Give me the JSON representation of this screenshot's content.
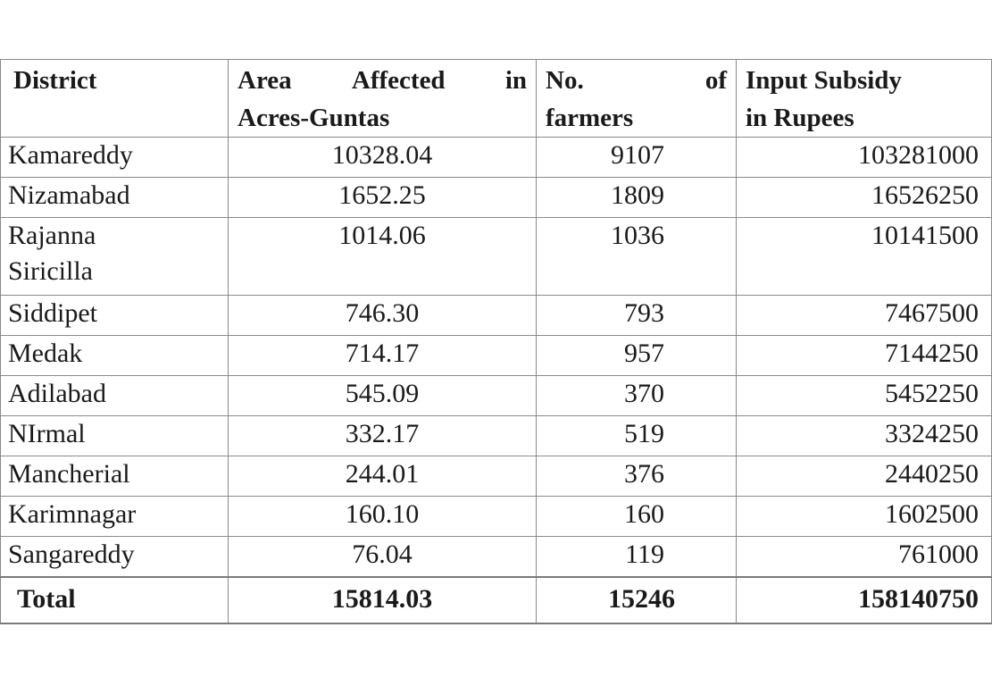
{
  "table": {
    "headers": {
      "district": "District",
      "area": [
        "Area Affected in",
        "Acres-Guntas"
      ],
      "farmers": [
        "No. of",
        "farmers"
      ],
      "subsidy": [
        "Input Subsidy",
        "in Rupees"
      ]
    },
    "rows": [
      {
        "district": "Kamareddy",
        "area": "10328.04",
        "farmers": "9107",
        "subsidy": "103281000"
      },
      {
        "district": "Nizamabad",
        "area": "1652.25",
        "farmers": "1809",
        "subsidy": "16526250"
      },
      {
        "district": "Rajanna Siricilla",
        "area": "1014.06",
        "farmers": "1036",
        "subsidy": "10141500"
      },
      {
        "district": "Siddipet",
        "area": "746.30",
        "farmers": "793",
        "subsidy": "7467500"
      },
      {
        "district": "Medak",
        "area": "714.17",
        "farmers": "957",
        "subsidy": "7144250"
      },
      {
        "district": "Adilabad",
        "area": "545.09",
        "farmers": "370",
        "subsidy": "5452250"
      },
      {
        "district": "NIrmal",
        "area": "332.17",
        "farmers": "519",
        "subsidy": "3324250"
      },
      {
        "district": "Mancherial",
        "area": "244.01",
        "farmers": "376",
        "subsidy": "2440250"
      },
      {
        "district": "Karimnagar",
        "area": "160.10",
        "farmers": "160",
        "subsidy": "1602500"
      },
      {
        "district": "Sangareddy",
        "area": "76.04",
        "farmers": "119",
        "subsidy": "761000"
      }
    ],
    "total": {
      "district": "Total",
      "area": "15814.03",
      "farmers": "15246",
      "subsidy": "158140750"
    }
  }
}
